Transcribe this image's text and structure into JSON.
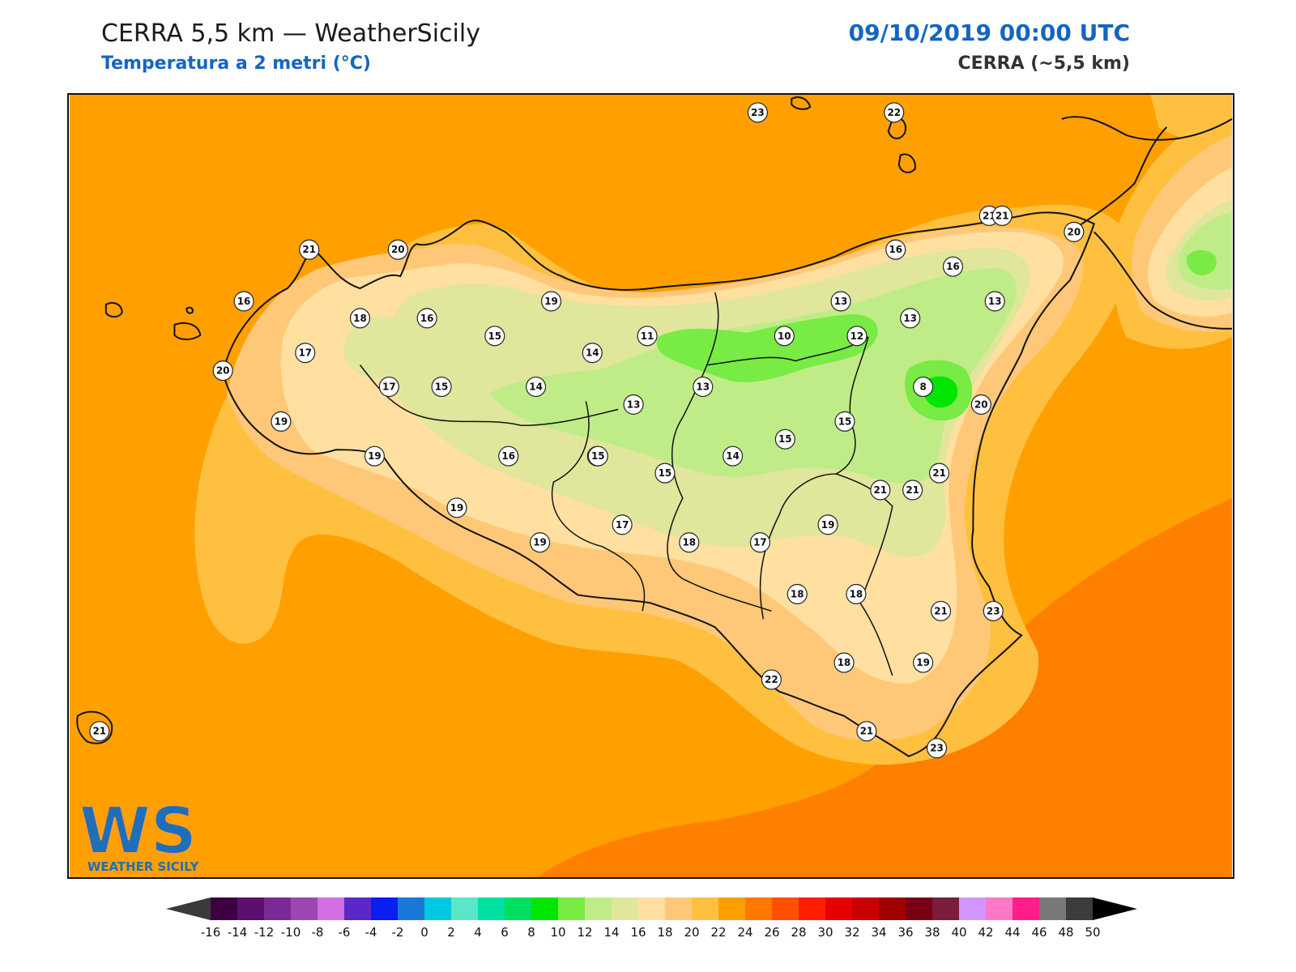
{
  "header": {
    "title": "CERRA 5,5 km — WeatherSicily",
    "subtitle": "Temperatura a 2 metri (°C)",
    "datetime": "09/10/2019 00:00 UTC",
    "model": "CERRA (~5,5 km)"
  },
  "logo": {
    "letters": "WS",
    "name": "WEATHER SICILY"
  },
  "colorbar": {
    "ticks": [
      "-16",
      "-14",
      "-12",
      "-10",
      "-8",
      "-6",
      "-4",
      "-2",
      "0",
      "2",
      "4",
      "6",
      "8",
      "10",
      "12",
      "14",
      "16",
      "18",
      "20",
      "22",
      "24",
      "26",
      "28",
      "30",
      "32",
      "34",
      "36",
      "38",
      "40",
      "42",
      "44",
      "46",
      "48",
      "50"
    ],
    "colors": [
      "#3d0040",
      "#5b0f6e",
      "#7a2a94",
      "#9c47b2",
      "#d46ee3",
      "#5a28c8",
      "#0a1ef0",
      "#1878d8",
      "#00c8e0",
      "#5ae6c8",
      "#00e0a0",
      "#00e060",
      "#00e600",
      "#78eb44",
      "#c0ec88",
      "#e0e69c",
      "#ffe0a0",
      "#ffc878",
      "#ffc040",
      "#ffa000",
      "#ff7800",
      "#ff5000",
      "#ff1e00",
      "#e60000",
      "#c80000",
      "#a00000",
      "#780014",
      "#7a1e3c",
      "#d296ff",
      "#ff78c8",
      "#ff1e8c",
      "#787878",
      "#3c3c3c"
    ],
    "under_color": "#3a3a3a",
    "over_color": "#000000"
  },
  "map_data": {
    "colors": {
      "sea_main": "#ffa000",
      "sea_south": "#ff8000",
      "band_20_22": "#ffc040",
      "band_18_20": "#ffc878",
      "band_16_18": "#ffe0a0",
      "band_14_16": "#e0e69c",
      "band_12_14": "#c0ec88",
      "band_10_12": "#78eb44",
      "band_8_10": "#00e600",
      "coast": "#111111"
    },
    "station_values": [
      "23",
      "22",
      "21",
      "20",
      "16",
      "18",
      "16",
      "13",
      "21",
      "20",
      "20",
      "21",
      "16",
      "16",
      "15",
      "19",
      "14",
      "11",
      "10",
      "12",
      "13",
      "13",
      "17",
      "17",
      "15",
      "14",
      "13",
      "13",
      "8",
      "20",
      "15",
      "15",
      "19",
      "16",
      "15",
      "15",
      "14",
      "15",
      "21",
      "21",
      "19",
      "17",
      "18",
      "17",
      "19",
      "19",
      "19",
      "18",
      "18",
      "23",
      "21",
      "21",
      "22",
      "18",
      "19",
      "21",
      "23",
      "21"
    ]
  }
}
